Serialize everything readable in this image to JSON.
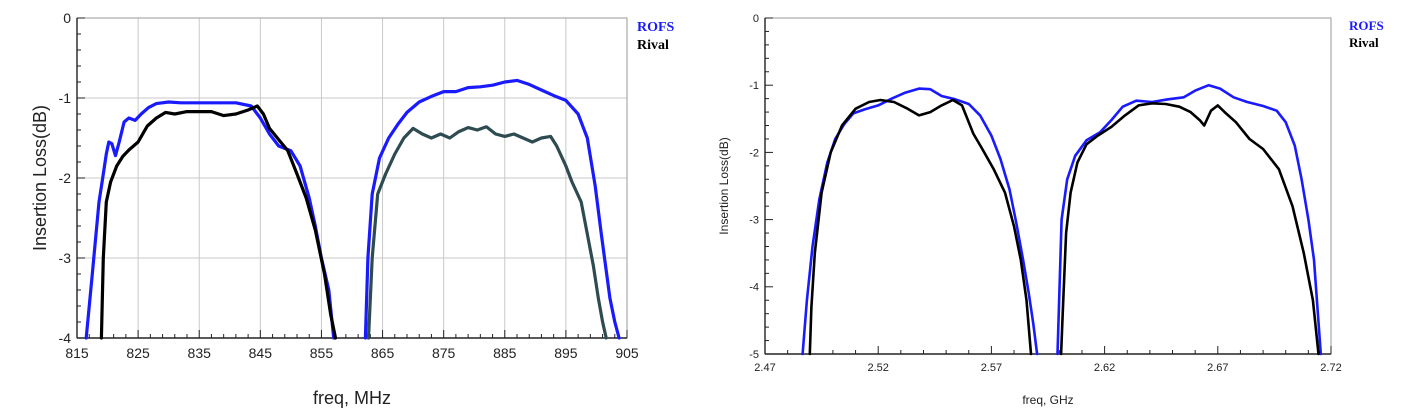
{
  "chart_data": [
    {
      "type": "line",
      "title": "",
      "xlabel": "freq, MHz",
      "ylabel": "Insertion Loss(dB)",
      "xlim": [
        815,
        905
      ],
      "ylim": [
        -4,
        0
      ],
      "xticks": [
        "815",
        "825",
        "835",
        "845",
        "855",
        "865",
        "875",
        "885",
        "895",
        "905"
      ],
      "yticks": [
        "0",
        "-1",
        "-2",
        "-3",
        "-4"
      ],
      "grid": true,
      "legend_position": "top-right",
      "series": [
        {
          "name": "ROFS",
          "color": "#1a1aff",
          "width": 3.2,
          "segments": [
            {
              "x": [
                816.5,
                817.5,
                818.6,
                819.2,
                819.8,
                820.2,
                820.7,
                821.3,
                821.9,
                822.7,
                823.5,
                824.5,
                825.5,
                826.7,
                828.0,
                830.0,
                832.0,
                835.0,
                838.0,
                841.0,
                843.5,
                845.0,
                846.5,
                848.0,
                850.0,
                851.5,
                853.0,
                854.0,
                855.0,
                856.2,
                857.0
              ],
              "y": [
                -4.0,
                -3.2,
                -2.3,
                -2.0,
                -1.7,
                -1.55,
                -1.57,
                -1.72,
                -1.55,
                -1.3,
                -1.25,
                -1.28,
                -1.2,
                -1.12,
                -1.07,
                -1.05,
                -1.06,
                -1.06,
                -1.06,
                -1.06,
                -1.1,
                -1.25,
                -1.45,
                -1.6,
                -1.66,
                -1.85,
                -2.25,
                -2.6,
                -3.0,
                -3.4,
                -4.0
              ]
            },
            {
              "x": [
                862.2,
                862.6,
                863.3,
                864.5,
                866.0,
                867.5,
                869.0,
                871.0,
                873.0,
                875.0,
                877.0,
                879.0,
                881.0,
                883.0,
                885.0,
                887.0,
                889.0,
                891.0,
                893.0,
                895.0,
                897.0,
                898.5,
                899.8,
                900.8,
                901.5,
                902.2,
                903.0,
                903.7
              ],
              "y": [
                -4.0,
                -3.0,
                -2.2,
                -1.75,
                -1.5,
                -1.33,
                -1.18,
                -1.05,
                -0.98,
                -0.92,
                -0.92,
                -0.87,
                -0.86,
                -0.84,
                -0.8,
                -0.78,
                -0.83,
                -0.9,
                -0.97,
                -1.03,
                -1.2,
                -1.5,
                -2.1,
                -2.7,
                -3.1,
                -3.5,
                -3.8,
                -4.0
              ]
            }
          ]
        },
        {
          "name": "Rival",
          "color": "#000000",
          "width": 3.2,
          "segments": [
            {
              "x": [
                819.0,
                819.3,
                819.8,
                820.5,
                821.5,
                822.5,
                823.5,
                825.0,
                826.5,
                828.0,
                829.5,
                831.0,
                833.0,
                835.0,
                837.0,
                839.0,
                841.0,
                843.0,
                844.5,
                845.5,
                846.5,
                848.0,
                849.5,
                851.0,
                852.5,
                854.0,
                855.5,
                856.5,
                857.3
              ],
              "y": [
                -4.0,
                -3.0,
                -2.3,
                -2.05,
                -1.85,
                -1.73,
                -1.65,
                -1.55,
                -1.35,
                -1.25,
                -1.18,
                -1.2,
                -1.17,
                -1.17,
                -1.17,
                -1.22,
                -1.2,
                -1.15,
                -1.1,
                -1.2,
                -1.38,
                -1.52,
                -1.66,
                -1.95,
                -2.25,
                -2.65,
                -3.2,
                -3.7,
                -4.0
              ]
            }
          ]
        },
        {
          "name": "",
          "color": "#2d4b50",
          "width": 3.2,
          "segments": [
            {
              "x": [
                862.7,
                863.3,
                864.2,
                865.5,
                867.0,
                868.5,
                870.0,
                871.5,
                873.0,
                874.5,
                876.0,
                877.5,
                879.0,
                880.5,
                882.0,
                883.5,
                885.0,
                886.5,
                888.0,
                889.5,
                891.0,
                892.5,
                893.5,
                895.0,
                896.0,
                897.5,
                898.5,
                899.5,
                900.3,
                901.0,
                901.6
              ],
              "y": [
                -4.0,
                -3.0,
                -2.2,
                -1.95,
                -1.7,
                -1.5,
                -1.38,
                -1.45,
                -1.5,
                -1.45,
                -1.5,
                -1.42,
                -1.37,
                -1.4,
                -1.36,
                -1.45,
                -1.48,
                -1.45,
                -1.5,
                -1.55,
                -1.5,
                -1.48,
                -1.6,
                -1.85,
                -2.05,
                -2.3,
                -2.7,
                -3.1,
                -3.5,
                -3.8,
                -4.0
              ]
            }
          ]
        }
      ]
    },
    {
      "type": "line",
      "title": "",
      "xlabel": "freq, GHz",
      "ylabel": "Insertion Loss(dB)",
      "xlim": [
        2.47,
        2.72
      ],
      "ylim": [
        -5,
        0
      ],
      "xticks": [
        "2.47",
        "2.52",
        "2.57",
        "2.62",
        "2.67",
        "2.72"
      ],
      "yticks": [
        "0",
        "-1",
        "-2",
        "-3",
        "-4",
        "-5"
      ],
      "grid": false,
      "legend_position": "top-right",
      "series": [
        {
          "name": "ROFS",
          "color": "#1a1aff",
          "width": 2.6,
          "segments": [
            {
              "x": [
                2.4866,
                2.4885,
                2.491,
                2.494,
                2.4975,
                2.501,
                2.505,
                2.509,
                2.514,
                2.52,
                2.526,
                2.532,
                2.538,
                2.543,
                2.548,
                2.554,
                2.56,
                2.565,
                2.57,
                2.574,
                2.578,
                2.581,
                2.584,
                2.5865,
                2.5885,
                2.5902
              ],
              "y": [
                -5.0,
                -4.2,
                -3.4,
                -2.7,
                -2.15,
                -1.8,
                -1.58,
                -1.42,
                -1.36,
                -1.3,
                -1.2,
                -1.11,
                -1.05,
                -1.06,
                -1.16,
                -1.21,
                -1.28,
                -1.45,
                -1.75,
                -2.1,
                -2.55,
                -3.05,
                -3.6,
                -4.1,
                -4.55,
                -5.0
              ]
            },
            {
              "x": [
                2.5992,
                2.601,
                2.6035,
                2.607,
                2.612,
                2.618,
                2.623,
                2.628,
                2.634,
                2.641,
                2.648,
                2.655,
                2.66,
                2.666,
                2.671,
                2.677,
                2.683,
                2.69,
                2.696,
                2.7,
                2.704,
                2.707,
                2.71,
                2.7125,
                2.714,
                2.7155
              ],
              "y": [
                -5.0,
                -3.0,
                -2.4,
                -2.05,
                -1.82,
                -1.7,
                -1.52,
                -1.32,
                -1.23,
                -1.25,
                -1.21,
                -1.18,
                -1.08,
                -1.0,
                -1.05,
                -1.18,
                -1.25,
                -1.31,
                -1.38,
                -1.55,
                -1.9,
                -2.4,
                -3.0,
                -3.6,
                -4.3,
                -5.0
              ]
            }
          ]
        },
        {
          "name": "Rival",
          "color": "#000000",
          "width": 2.6,
          "segments": [
            {
              "x": [
                2.4898,
                2.4905,
                2.492,
                2.495,
                2.499,
                2.504,
                2.51,
                2.516,
                2.521,
                2.527,
                2.533,
                2.538,
                2.543,
                2.548,
                2.553,
                2.557,
                2.562,
                2.566,
                2.571,
                2.576,
                2.58,
                2.583,
                2.5855,
                2.5875
              ],
              "y": [
                -5.0,
                -4.3,
                -3.5,
                -2.6,
                -2.0,
                -1.6,
                -1.35,
                -1.25,
                -1.22,
                -1.25,
                -1.35,
                -1.45,
                -1.4,
                -1.3,
                -1.22,
                -1.3,
                -1.72,
                -1.95,
                -2.25,
                -2.6,
                -3.1,
                -3.6,
                -4.2,
                -5.0
              ]
            },
            {
              "x": [
                2.6008,
                2.6015,
                2.603,
                2.605,
                2.608,
                2.612,
                2.617,
                2.623,
                2.629,
                2.635,
                2.641,
                2.647,
                2.653,
                2.658,
                2.662,
                2.664,
                2.667,
                2.67,
                2.673,
                2.678,
                2.684,
                2.69,
                2.697,
                2.703,
                2.708,
                2.712,
                2.7145
              ],
              "y": [
                -5.0,
                -4.4,
                -3.2,
                -2.6,
                -2.15,
                -1.88,
                -1.75,
                -1.62,
                -1.45,
                -1.3,
                -1.27,
                -1.28,
                -1.32,
                -1.4,
                -1.52,
                -1.6,
                -1.38,
                -1.3,
                -1.4,
                -1.55,
                -1.8,
                -1.95,
                -2.25,
                -2.8,
                -3.5,
                -4.2,
                -5.0
              ]
            }
          ]
        }
      ]
    }
  ]
}
